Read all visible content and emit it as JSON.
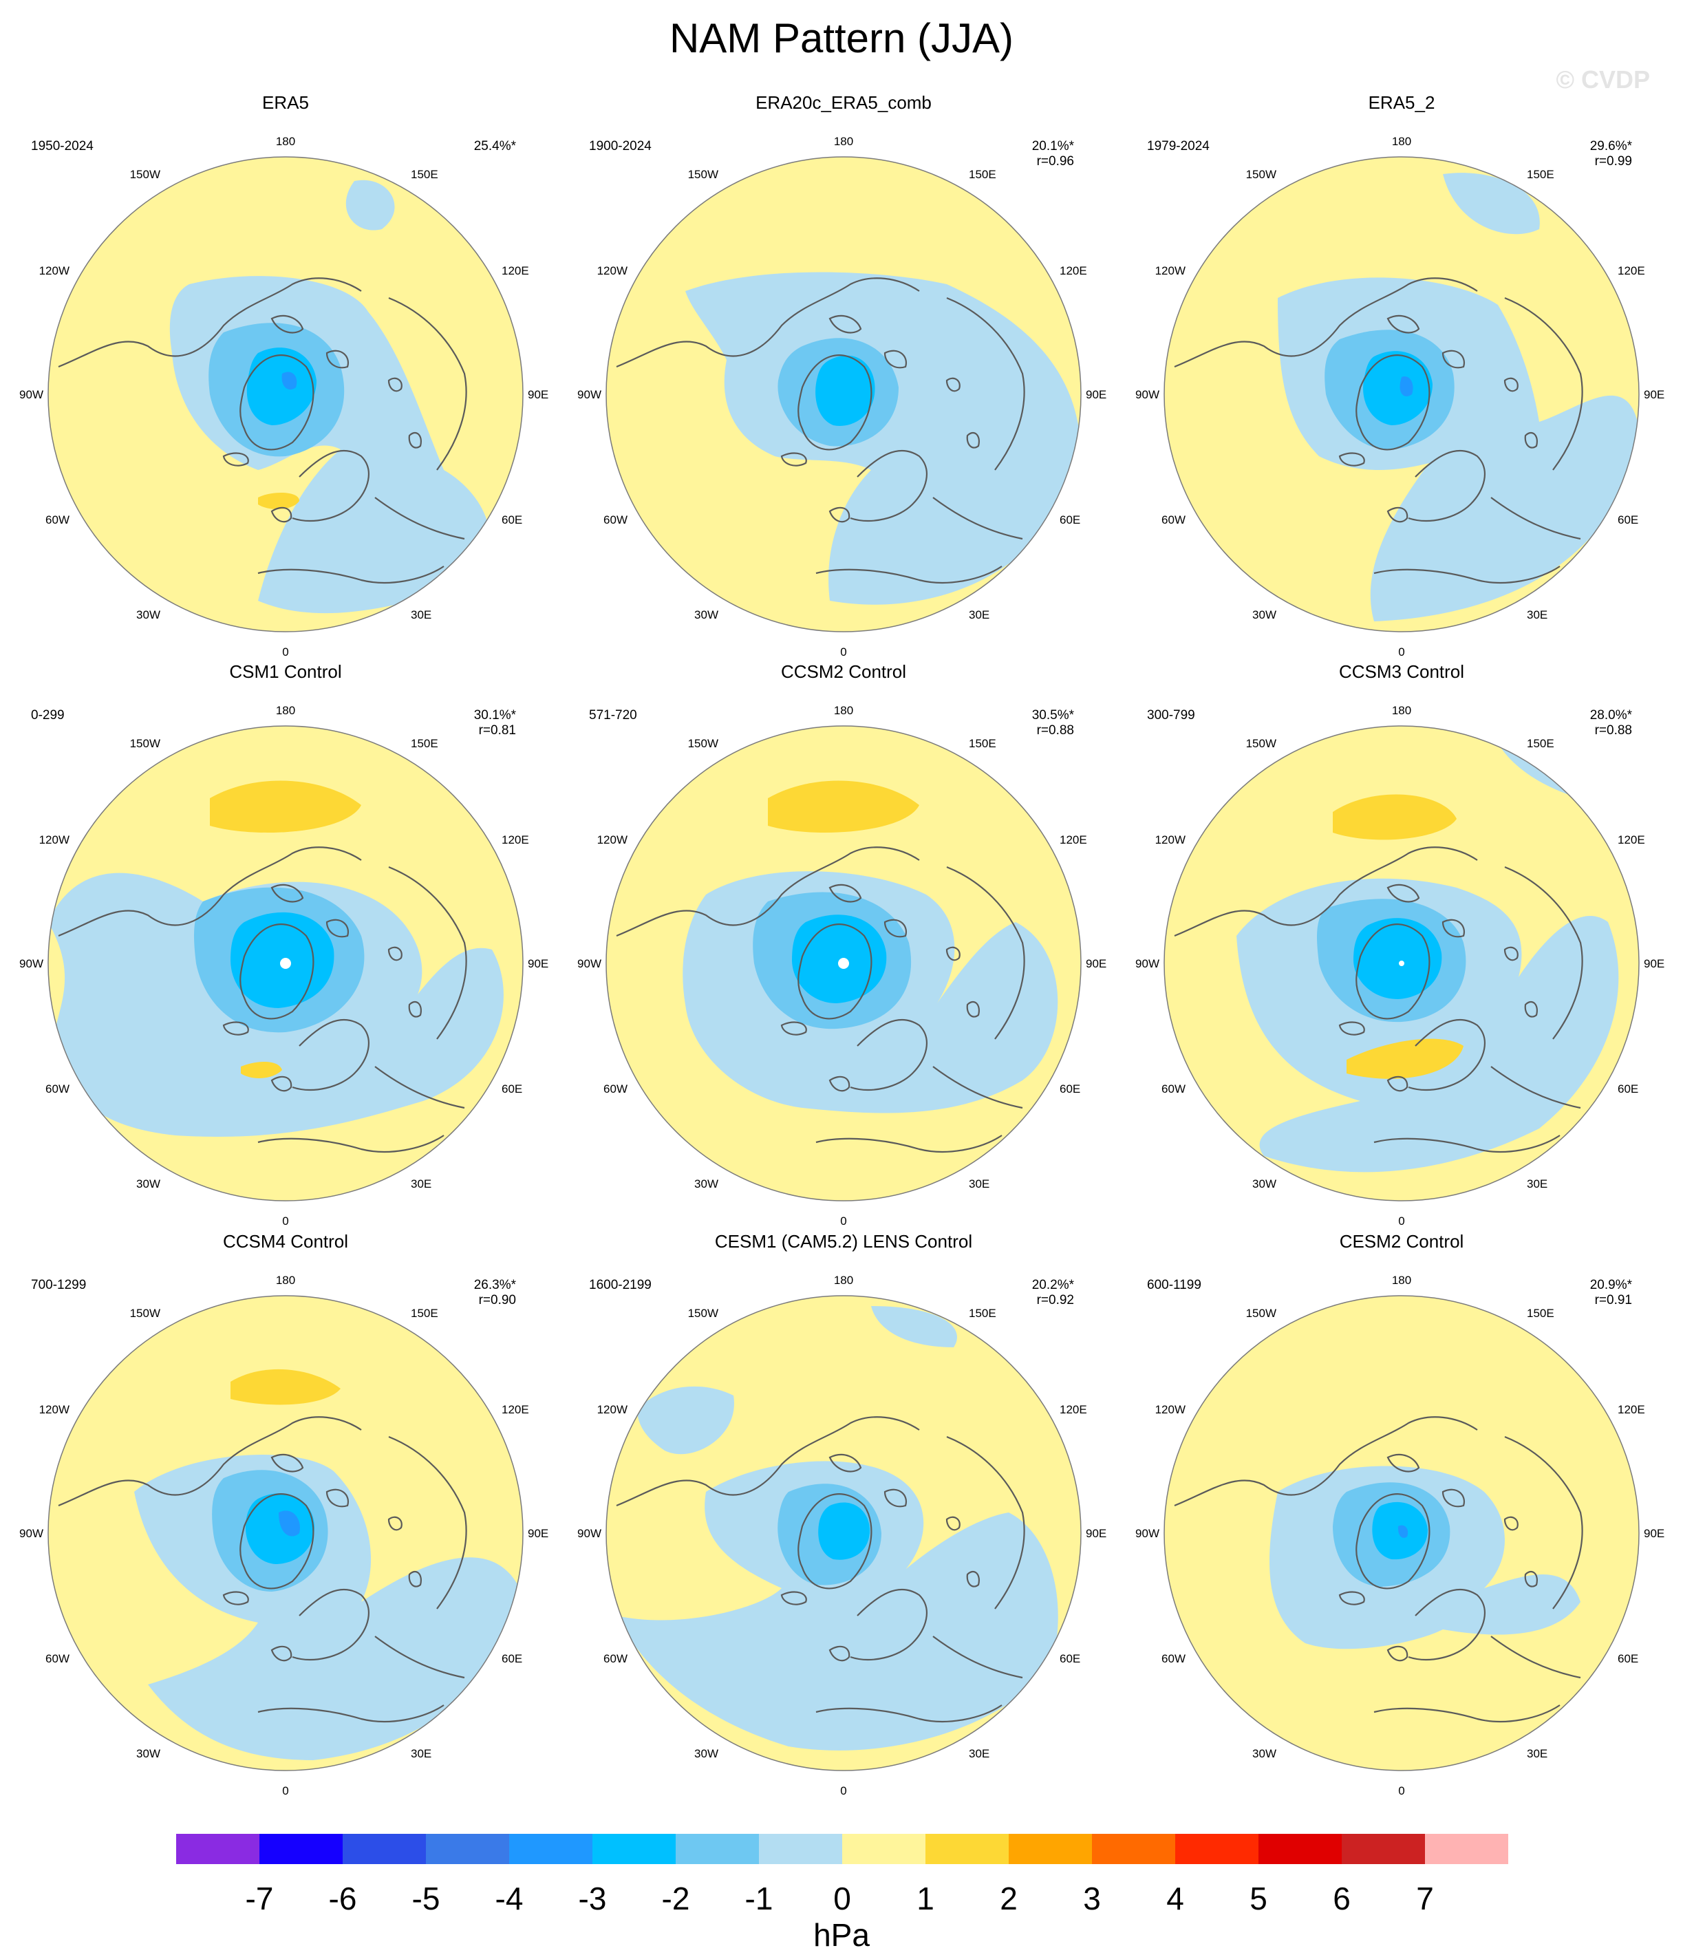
{
  "figure": {
    "title": "NAM Pattern (JJA)",
    "watermark": "© CVDP"
  },
  "longitude_labels": {
    "top": "180",
    "bottom": "0",
    "left": "90W",
    "right": "90E",
    "upper_left_1": "150W",
    "upper_left_2": "120W",
    "upper_right_1": "150E",
    "upper_right_2": "120E",
    "lower_left_1": "60W",
    "lower_left_2": "30W",
    "lower_right_1": "60E",
    "lower_right_2": "30E"
  },
  "panels": [
    {
      "title": "ERA5",
      "years": "1950-2024",
      "pct": "25.4%*",
      "r": ""
    },
    {
      "title": "ERA20c_ERA5_comb",
      "years": "1900-2024",
      "pct": "20.1%*",
      "r": "r=0.96"
    },
    {
      "title": "ERA5_2",
      "years": "1979-2024",
      "pct": "29.6%*",
      "r": "r=0.99"
    },
    {
      "title": "CSM1 Control",
      "years": "0-299",
      "pct": "30.1%*",
      "r": "r=0.81"
    },
    {
      "title": "CCSM2 Control",
      "years": "571-720",
      "pct": "30.5%*",
      "r": "r=0.88"
    },
    {
      "title": "CCSM3 Control",
      "years": "300-799",
      "pct": "28.0%*",
      "r": "r=0.88"
    },
    {
      "title": "CCSM4 Control",
      "years": "700-1299",
      "pct": "26.3%*",
      "r": "r=0.90"
    },
    {
      "title": "CESM1 (CAM5.2) LENS Control",
      "years": "1600-2199",
      "pct": "20.2%*",
      "r": "r=0.92"
    },
    {
      "title": "CESM2 Control",
      "years": "600-1199",
      "pct": "20.9%*",
      "r": "r=0.91"
    }
  ],
  "colorbar": {
    "labels": [
      "-7",
      "-6",
      "-5",
      "-4",
      "-3",
      "-2",
      "-1",
      "0",
      "1",
      "2",
      "3",
      "4",
      "5",
      "6",
      "7"
    ],
    "colors": [
      "#8a2be2",
      "#1500ff",
      "#2c4ee8",
      "#3a7ae8",
      "#1f98ff",
      "#00c0ff",
      "#6ec8f2",
      "#b3ddf2",
      "#fff59b",
      "#fdd835",
      "#ffa500",
      "#ff6a00",
      "#ff2a00",
      "#e00000",
      "#cc2222",
      "#ffb3b3"
    ],
    "unit": "hPa"
  },
  "map_colors": {
    "ocean_positive": "#fff59b",
    "level_neg1": "#b3ddf2",
    "level_neg2": "#6ec8f2",
    "level_neg3": "#00c0ff",
    "level_neg4": "#1f98ff",
    "level_pos2": "#fdd835",
    "coastline": "#5a5a5a"
  }
}
